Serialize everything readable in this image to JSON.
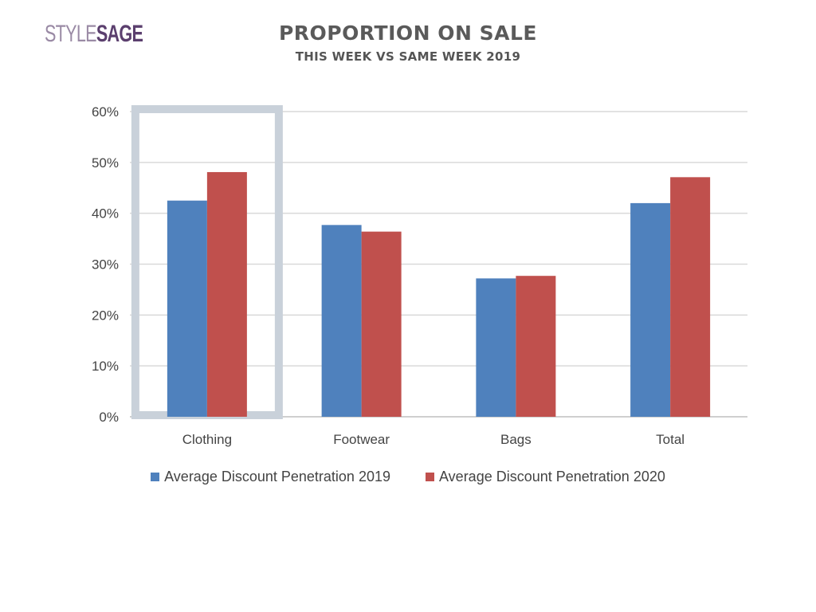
{
  "brand": {
    "logo_part1": "STYLE",
    "logo_part2": "SAGE"
  },
  "header": {
    "title": "PROPORTION ON SALE",
    "subtitle": "THIS WEEK VS SAME WEEK 2019"
  },
  "chart_data": {
    "type": "bar",
    "categories": [
      "Clothing",
      "Footwear",
      "Bags",
      "Total"
    ],
    "series": [
      {
        "name": "Average Discount Penetration 2019",
        "values": [
          42.5,
          37.7,
          27.2,
          42.0
        ],
        "color": "#4f81bd"
      },
      {
        "name": "Average Discount Penetration 2020",
        "values": [
          48.1,
          36.4,
          27.7,
          47.1
        ],
        "color": "#c0504d"
      }
    ],
    "yticks": [
      "0%",
      "10%",
      "20%",
      "30%",
      "40%",
      "50%",
      "60%"
    ],
    "ylim": [
      0,
      60
    ],
    "xlabel": "",
    "ylabel": "",
    "grid": true,
    "legend_position": "bottom",
    "highlighted_category": "Clothing",
    "highlight_color": "#c9d1da"
  }
}
